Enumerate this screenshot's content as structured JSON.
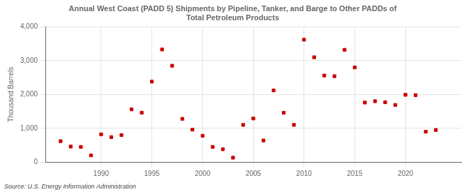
{
  "chart_data": {
    "type": "scatter",
    "title": "Annual West Coast (PADD 5) Shipments by Pipeline, Tanker, and Barge to Other PADDs of\nTotal Petroleum Products",
    "ylabel": "Thousand Barrels",
    "source": "Source: U.S. Energy Information Administration",
    "x": [
      1986,
      1987,
      1988,
      1989,
      1990,
      1991,
      1992,
      1993,
      1994,
      1995,
      1996,
      1997,
      1998,
      1999,
      2000,
      2001,
      2002,
      2003,
      2004,
      2005,
      2006,
      2007,
      2008,
      2009,
      2010,
      2011,
      2012,
      2013,
      2014,
      2015,
      2016,
      2017,
      2018,
      2019,
      2020,
      2021,
      2022,
      2023
    ],
    "values": [
      620,
      460,
      450,
      200,
      820,
      740,
      800,
      1560,
      1460,
      2380,
      3330,
      2850,
      1280,
      960,
      780,
      450,
      380,
      130,
      1100,
      1290,
      640,
      2120,
      1460,
      1100,
      3620,
      3100,
      2560,
      2540,
      3320,
      2800,
      1760,
      1800,
      1770,
      1690,
      1990,
      1980,
      900,
      950
    ],
    "color": "#cc0000",
    "marker": "square",
    "xlim": [
      1984.5,
      2025.5
    ],
    "xticks": [
      1990,
      1995,
      2000,
      2005,
      2010,
      2015,
      2020
    ],
    "ylim": [
      0,
      4000
    ],
    "yticks": [
      0,
      {
        "value": 1000,
        "label": "1,000"
      },
      {
        "value": 2000,
        "label": "2,000"
      },
      {
        "value": 3000,
        "label": "3,000"
      },
      {
        "value": 4000,
        "label": "4,000"
      }
    ],
    "grid": true
  }
}
